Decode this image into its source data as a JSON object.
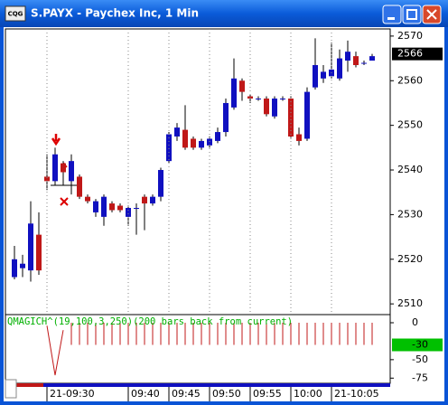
{
  "window": {
    "icon": "CQG",
    "title": "S.PAYX - Paychex Inc, 1 Min"
  },
  "chart_data": {
    "type": "candlestick",
    "categories": [
      null,
      null,
      null,
      null,
      "21-09:30",
      null,
      null,
      null,
      null,
      null,
      null,
      null,
      null,
      null,
      "09:40",
      null,
      null,
      null,
      null,
      "09:45",
      null,
      null,
      null,
      null,
      "09:50",
      null,
      null,
      null,
      null,
      "09:55",
      null,
      null,
      null,
      null,
      "10:00",
      null,
      null,
      null,
      null,
      "21-10:05",
      null,
      null,
      null,
      null,
      null
    ],
    "open": [
      2516,
      2518,
      2517.5,
      2525.5,
      2538.5,
      2537.5,
      2541.5,
      2537.5,
      2538.5,
      2534,
      2530.5,
      2529.5,
      2532.5,
      2532,
      2529.5,
      2531.5,
      2534,
      2532.5,
      2534,
      2542,
      2547.5,
      2549,
      2547,
      2545,
      2545.5,
      2546.5,
      2548.5,
      2554,
      2560,
      2556.5,
      2556,
      2556,
      2552,
      2556,
      2556,
      2548,
      2547,
      2558.5,
      2560.5,
      2561,
      2560.5,
      2564.5,
      2565.5,
      2564,
      2564.5
    ],
    "high": [
      2523,
      2521,
      2533,
      2530.5,
      2543.5,
      2545,
      2542,
      2543.5,
      2539,
      2534.5,
      2533.5,
      2534.5,
      2533,
      2532.5,
      2532,
      2532.5,
      2534.5,
      2534.5,
      2540.5,
      2548.5,
      2550.5,
      2554.5,
      2547.5,
      2547,
      2547.5,
      2549.5,
      2556,
      2565,
      2560.5,
      2557,
      2556.5,
      2556.5,
      2556.5,
      2556.5,
      2556.5,
      2549.5,
      2558.5,
      2569.5,
      2563.5,
      2568.5,
      2567,
      2569,
      2566.5,
      2564.5,
      2566
    ],
    "low": [
      2515.5,
      2516,
      2515,
      2516.5,
      2535.5,
      2536.5,
      2536.5,
      2534.5,
      2533.5,
      2532.5,
      2529.5,
      2527.5,
      2530.5,
      2530.5,
      2527.5,
      2525.5,
      2526.5,
      2532,
      2533,
      2541.5,
      2546.5,
      2544.5,
      2544.5,
      2544.5,
      2545,
      2546,
      2547.5,
      2553.5,
      2555.5,
      2555,
      2555.5,
      2552,
      2551.5,
      2555.5,
      2547,
      2545.5,
      2546.5,
      2558,
      2559.5,
      2560.5,
      2560,
      2562,
      2563,
      2563.5,
      2564.5
    ],
    "close": [
      2520,
      2519,
      2528,
      2517.5,
      2537.5,
      2543.5,
      2539.5,
      2542,
      2534,
      2533,
      2533,
      2534,
      2531,
      2531,
      2531.5,
      2531.5,
      2532.5,
      2534,
      2540,
      2548,
      2549.5,
      2545,
      2545,
      2546.5,
      2547,
      2548.5,
      2555,
      2560.5,
      2557.5,
      2556,
      2556,
      2552.5,
      2556,
      2556,
      2547.5,
      2546.5,
      2557.5,
      2563.5,
      2562,
      2562.5,
      2565,
      2566.5,
      2563.5,
      2564,
      2565.5
    ],
    "up_color": "#1010c0",
    "down_color": "#c01818",
    "ylim": [
      2507.6,
      2571.6
    ],
    "yticks": [
      2510,
      2520,
      2530,
      2540,
      2550,
      2560,
      2570
    ],
    "last_price": 2566,
    "indicator": {
      "label": "QMAGICH^(19,100,3,250)(200 bars back from current)",
      "color": "#c01818",
      "label_color": "#00b000",
      "line": [
        null,
        null,
        null,
        null,
        -4,
        -71,
        -10,
        null,
        null,
        null,
        null,
        null,
        null,
        null,
        null,
        null,
        null,
        null,
        null,
        null,
        null,
        null,
        null,
        null,
        null,
        null,
        null,
        null,
        null,
        null,
        null,
        null,
        null,
        null,
        null,
        null,
        null,
        null,
        null,
        null,
        null,
        null,
        null,
        null,
        null
      ],
      "histogram": [
        null,
        null,
        null,
        null,
        null,
        null,
        null,
        -30,
        -30,
        -30,
        -30,
        -30,
        -30,
        -30,
        -30,
        -30,
        -30,
        -30,
        -30,
        -30,
        -30,
        -30,
        -30,
        -30,
        -30,
        -30,
        -30,
        -30,
        -30,
        -30,
        -30,
        -30,
        -30,
        -30,
        -30,
        -30,
        -30,
        -30,
        -30,
        -30,
        -30,
        -30,
        -30,
        -30,
        -30
      ],
      "ylim": [
        -82,
        11
      ],
      "yticks": [
        0,
        -50,
        -75
      ],
      "last_value": -30
    }
  }
}
